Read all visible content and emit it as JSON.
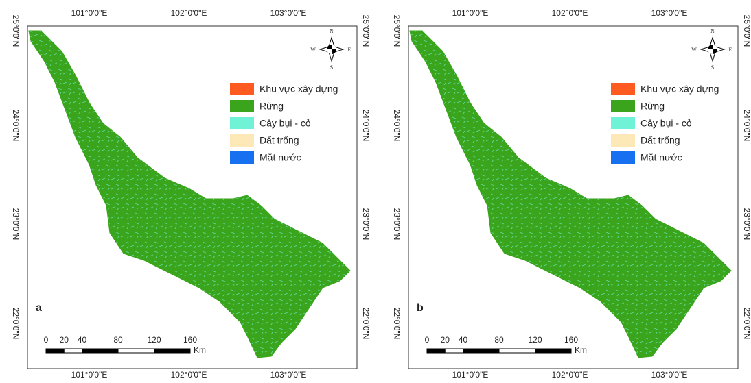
{
  "panels": [
    {
      "label": "a"
    },
    {
      "label": "b"
    }
  ],
  "longitude_labels": [
    "101°0'0\"E",
    "102°0'0\"E",
    "103°0'0\"E"
  ],
  "latitude_labels": [
    "25°0'0\"N",
    "24°0'0\"N",
    "23°0'0\"N",
    "22°0'0\"N"
  ],
  "legend": [
    {
      "label": "Khu vực xây dựng",
      "color": "#ff5a1f"
    },
    {
      "label": "Rừng",
      "color": "#3aa51c"
    },
    {
      "label": "Cây bụi - cỏ",
      "color": "#6ff2d6"
    },
    {
      "label": "Đất trống",
      "color": "#fde8b8"
    },
    {
      "label": "Mặt nước",
      "color": "#1670f0"
    }
  ],
  "scale_bar": {
    "ticks": [
      0,
      20,
      40,
      80,
      120,
      160
    ],
    "unit": "Km"
  },
  "compass": {
    "north": "N",
    "south": "S",
    "east": "E",
    "west": "W"
  }
}
